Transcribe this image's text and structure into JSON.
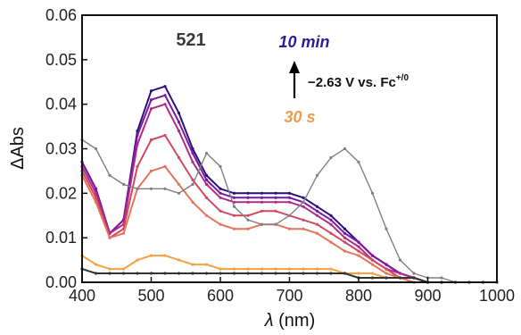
{
  "chart_data": {
    "type": "line",
    "xlabel_symbol": "λ",
    "xlabel_unit": " (nm)",
    "ylabel": "ΔAbs",
    "xlim": [
      400,
      1000
    ],
    "ylim": [
      0,
      0.06
    ],
    "x_ticks": [
      400,
      500,
      600,
      700,
      800,
      900,
      1000
    ],
    "y_ticks": [
      0.0,
      0.01,
      0.02,
      0.03,
      0.04,
      0.05,
      0.06
    ],
    "y_tick_labels": [
      "0.00",
      "0.01",
      "0.02",
      "0.03",
      "0.04",
      "0.05",
      "0.06"
    ],
    "grid": false,
    "annotations": {
      "sample_label": "521",
      "time_end_label": "10 min",
      "time_start_label": "30 s",
      "potential_label": "−2.63 V vs. Fc",
      "potential_superscript": "+/0"
    },
    "colors": {
      "time_end": "#2c1a9a",
      "time_start": "#f29a4a",
      "reference_trace": "#808080",
      "dark_trace": "#333333"
    },
    "x": [
      400,
      420,
      440,
      460,
      480,
      500,
      520,
      540,
      560,
      580,
      600,
      620,
      640,
      660,
      680,
      700,
      720,
      740,
      760,
      780,
      800,
      820,
      840,
      860,
      880,
      900,
      920,
      940,
      960,
      980,
      1000
    ],
    "series": [
      {
        "color": "#2b0f80",
        "values": [
          0.027,
          0.021,
          0.011,
          0.014,
          0.034,
          0.043,
          0.044,
          0.038,
          0.03,
          0.024,
          0.021,
          0.02,
          0.02,
          0.02,
          0.02,
          0.02,
          0.019,
          0.017,
          0.015,
          0.012,
          0.009,
          0.006,
          0.004,
          0.002,
          0.001,
          0.0,
          0.0,
          0.0,
          0.0,
          0.0,
          0.0
        ]
      },
      {
        "color": "#7a189e",
        "values": [
          0.027,
          0.021,
          0.011,
          0.014,
          0.033,
          0.041,
          0.042,
          0.036,
          0.029,
          0.023,
          0.02,
          0.019,
          0.019,
          0.019,
          0.019,
          0.019,
          0.018,
          0.016,
          0.014,
          0.011,
          0.009,
          0.006,
          0.004,
          0.002,
          0.001,
          0.0,
          0.0,
          0.0,
          0.0,
          0.0,
          0.0
        ]
      },
      {
        "color": "#b02a8a",
        "values": [
          0.026,
          0.02,
          0.011,
          0.013,
          0.031,
          0.039,
          0.04,
          0.034,
          0.027,
          0.022,
          0.019,
          0.018,
          0.018,
          0.018,
          0.018,
          0.018,
          0.017,
          0.015,
          0.013,
          0.01,
          0.008,
          0.005,
          0.003,
          0.002,
          0.001,
          0.0,
          0.0,
          0.0,
          0.0,
          0.0,
          0.0
        ]
      },
      {
        "color": "#d1485f",
        "values": [
          0.025,
          0.019,
          0.01,
          0.012,
          0.026,
          0.032,
          0.033,
          0.028,
          0.023,
          0.019,
          0.016,
          0.015,
          0.015,
          0.016,
          0.016,
          0.015,
          0.014,
          0.013,
          0.011,
          0.009,
          0.007,
          0.005,
          0.003,
          0.001,
          0.001,
          0.0,
          0.0,
          0.0,
          0.0,
          0.0,
          0.0
        ]
      },
      {
        "color": "#e8735a",
        "values": [
          0.024,
          0.018,
          0.01,
          0.011,
          0.021,
          0.025,
          0.026,
          0.022,
          0.018,
          0.015,
          0.013,
          0.012,
          0.012,
          0.013,
          0.013,
          0.012,
          0.012,
          0.011,
          0.009,
          0.007,
          0.006,
          0.004,
          0.002,
          0.001,
          0.0,
          0.0,
          0.0,
          0.0,
          0.0,
          0.0,
          0.0
        ]
      },
      {
        "color": "#f5a142",
        "values": [
          0.006,
          0.004,
          0.003,
          0.003,
          0.005,
          0.006,
          0.006,
          0.005,
          0.004,
          0.004,
          0.003,
          0.003,
          0.003,
          0.003,
          0.003,
          0.003,
          0.003,
          0.003,
          0.003,
          0.002,
          0.002,
          0.002,
          0.001,
          0.001,
          0.001,
          0.0,
          0.0,
          0.0,
          0.0,
          0.0,
          0.0
        ]
      },
      {
        "color": "#333333",
        "values": [
          0.003,
          0.002,
          0.002,
          0.002,
          0.002,
          0.002,
          0.002,
          0.002,
          0.002,
          0.002,
          0.002,
          0.002,
          0.002,
          0.002,
          0.002,
          0.002,
          0.002,
          0.002,
          0.002,
          0.002,
          0.001,
          0.001,
          0.001,
          0.001,
          0.001,
          0.0,
          0.0,
          0.0,
          0.0,
          0.0,
          0.0
        ]
      },
      {
        "color": "#808080",
        "values": [
          0.032,
          0.03,
          0.024,
          0.022,
          0.021,
          0.021,
          0.021,
          0.02,
          0.022,
          0.029,
          0.026,
          0.017,
          0.014,
          0.013,
          0.013,
          0.015,
          0.018,
          0.024,
          0.028,
          0.03,
          0.027,
          0.02,
          0.012,
          0.005,
          0.002,
          0.001,
          0.001,
          0.0,
          0.0,
          0.0,
          0.0
        ]
      }
    ]
  }
}
